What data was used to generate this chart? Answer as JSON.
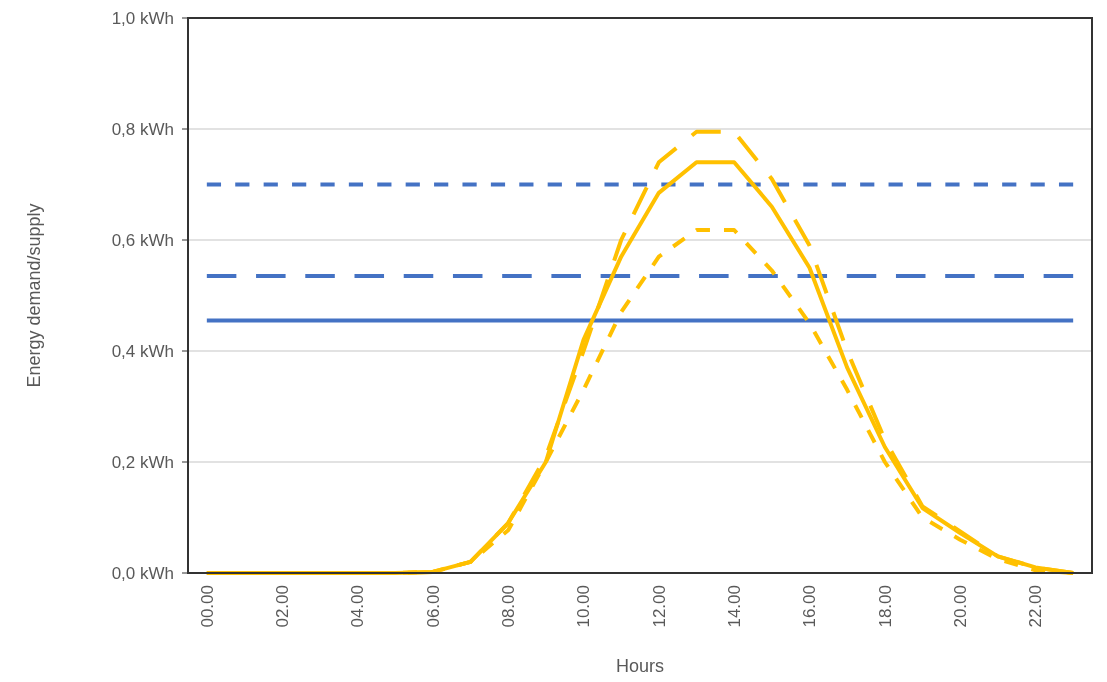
{
  "chart_data": {
    "type": "line",
    "xlabel": "Hours",
    "ylabel": "Energy demand/supply",
    "categories": [
      "00.00",
      null,
      "02.00",
      null,
      "04.00",
      null,
      "06.00",
      null,
      "08.00",
      null,
      "10.00",
      null,
      "12.00",
      null,
      "14.00",
      null,
      "16.00",
      null,
      "18.00",
      null,
      "20.00",
      null,
      "22.00",
      null
    ],
    "ylim": [
      0,
      1
    ],
    "yticks": [
      {
        "value": 0,
        "label": "0,0 kWh"
      },
      {
        "value": 0.2,
        "label": "0,2 kWh"
      },
      {
        "value": 0.4,
        "label": "0,4 kWh"
      },
      {
        "value": 0.6,
        "label": "0,6 kWh"
      },
      {
        "value": 0.8,
        "label": "0,8 kWh"
      },
      {
        "value": 1,
        "label": "1,0 kWh"
      }
    ],
    "grid": "y",
    "marker": "none",
    "series": [
      {
        "color": "#4472c4",
        "line_style": "dashed",
        "values": [
          0.7,
          0.7,
          0.7,
          0.7,
          0.7,
          0.7,
          0.7,
          0.7,
          0.7,
          0.7,
          0.7,
          0.7,
          0.7,
          0.7,
          0.7,
          0.7,
          0.7,
          0.7,
          0.7,
          0.7,
          0.7,
          0.7,
          0.7,
          0.7
        ]
      },
      {
        "color": "#4472c4",
        "line_style": "longdash",
        "values": [
          0.535,
          0.535,
          0.535,
          0.535,
          0.535,
          0.535,
          0.535,
          0.535,
          0.535,
          0.535,
          0.535,
          0.535,
          0.535,
          0.535,
          0.535,
          0.535,
          0.535,
          0.535,
          0.535,
          0.535,
          0.535,
          0.535,
          0.535,
          0.535
        ]
      },
      {
        "color": "#4472c4",
        "line_style": "solid",
        "values": [
          0.455,
          0.455,
          0.455,
          0.455,
          0.455,
          0.455,
          0.455,
          0.455,
          0.455,
          0.455,
          0.455,
          0.455,
          0.455,
          0.455,
          0.455,
          0.455,
          0.455,
          0.455,
          0.455,
          0.455,
          0.455,
          0.455,
          0.455,
          0.455
        ]
      },
      {
        "color": "#ffc000",
        "line_style": "solid",
        "values": [
          0,
          0,
          0,
          0,
          0,
          0,
          0.002,
          0.02,
          0.09,
          0.2,
          0.42,
          0.57,
          0.685,
          0.74,
          0.74,
          0.66,
          0.55,
          0.37,
          0.227,
          0.117,
          0.072,
          0.03,
          0.01,
          0
        ]
      },
      {
        "color": "#ffc000",
        "line_style": "longdash",
        "values": [
          0,
          0,
          0,
          0,
          0,
          0,
          0.002,
          0.02,
          0.09,
          0.21,
          0.4,
          0.6,
          0.74,
          0.795,
          0.795,
          0.71,
          0.59,
          0.4,
          0.24,
          0.12,
          0.075,
          0.03,
          0.01,
          0
        ]
      },
      {
        "color": "#ffc000",
        "line_style": "dashed",
        "values": [
          0,
          0,
          0,
          0,
          0,
          0,
          0.002,
          0.02,
          0.077,
          0.2,
          0.33,
          0.47,
          0.57,
          0.618,
          0.618,
          0.545,
          0.45,
          0.33,
          0.2,
          0.1,
          0.06,
          0.025,
          0.005,
          0
        ]
      }
    ]
  }
}
